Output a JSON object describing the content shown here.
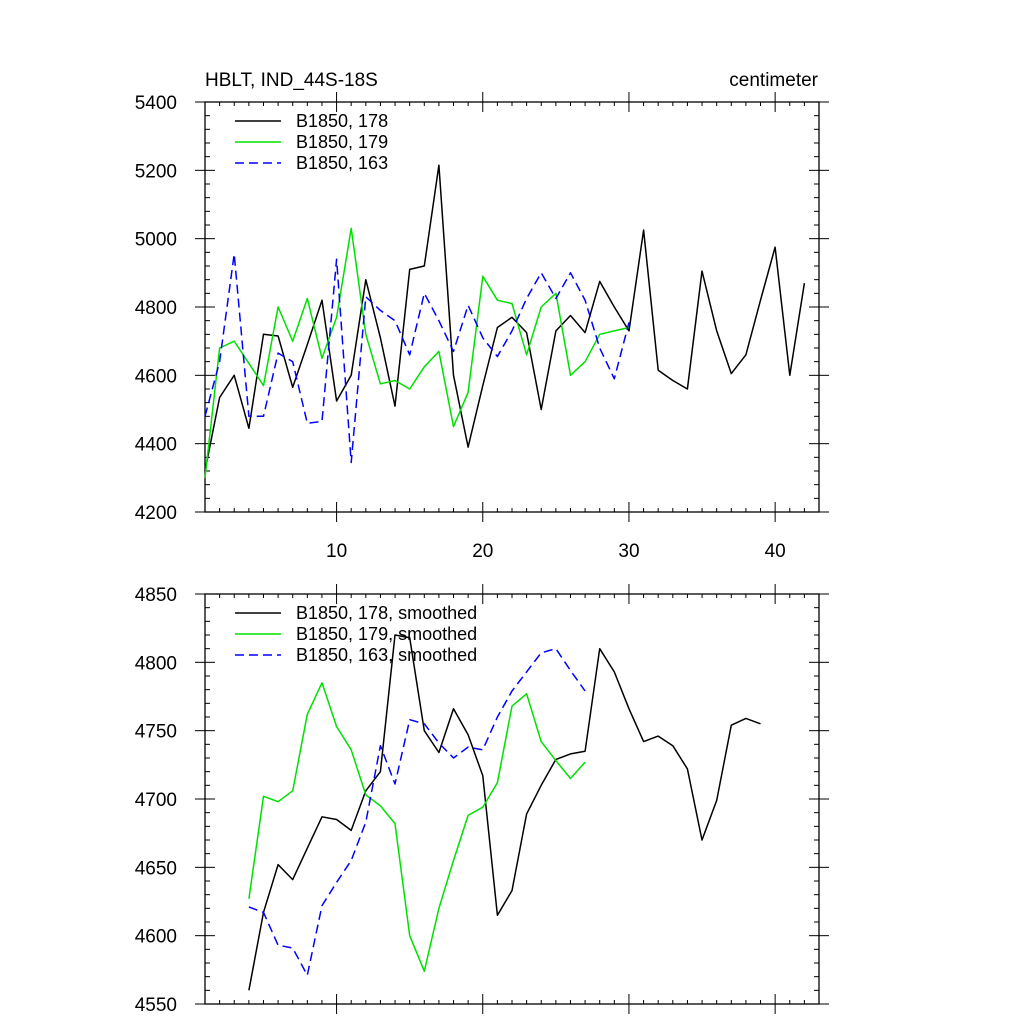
{
  "chart_data": [
    {
      "type": "line",
      "title_left": "HBLT, IND_44S-18S",
      "title_right": "centimeter",
      "xlabel": "",
      "ylabel": "",
      "xlim": [
        1,
        43
      ],
      "ylim": [
        4200,
        5400
      ],
      "xticks": [
        10,
        20,
        30,
        40
      ],
      "yticks": [
        4200,
        4400,
        4600,
        4800,
        5000,
        5200,
        5400
      ],
      "series": [
        {
          "name": "B1850, 178",
          "color": "#000000",
          "dash": "solid",
          "x": [
            1,
            2,
            3,
            4,
            5,
            6,
            7,
            8,
            9,
            10,
            11,
            12,
            13,
            14,
            15,
            16,
            17,
            18,
            19,
            20,
            21,
            22,
            23,
            24,
            25,
            26,
            27,
            28,
            29,
            30,
            31,
            32,
            33,
            34,
            35,
            36,
            37,
            38,
            39,
            40,
            41,
            42
          ],
          "values": [
            4320,
            4535,
            4600,
            4445,
            4720,
            4715,
            4565,
            4690,
            4820,
            4525,
            4600,
            4880,
            4710,
            4510,
            4910,
            4920,
            5215,
            4600,
            4390,
            4570,
            4740,
            4770,
            4725,
            4500,
            4730,
            4775,
            4725,
            4875,
            4800,
            4730,
            5025,
            4615,
            4585,
            4560,
            4905,
            4730,
            4605,
            4660,
            4820,
            4975,
            4600,
            4870
          ]
        },
        {
          "name": "B1850, 179",
          "color": "#00e000",
          "dash": "solid",
          "x": [
            1,
            2,
            3,
            4,
            5,
            6,
            7,
            8,
            9,
            10,
            11,
            12,
            13,
            14,
            15,
            16,
            17,
            18,
            19,
            20,
            21,
            22,
            23,
            24,
            25,
            26,
            27,
            28,
            29,
            30
          ],
          "values": [
            4300,
            4680,
            4700,
            4635,
            4570,
            4800,
            4700,
            4825,
            4650,
            4770,
            5030,
            4720,
            4575,
            4585,
            4560,
            4625,
            4670,
            4450,
            4550,
            4890,
            4820,
            4810,
            4660,
            4800,
            4840,
            4600,
            4640,
            4720,
            4730,
            4740
          ]
        },
        {
          "name": "B1850, 163",
          "color": "#0000ff",
          "dash": "dashed",
          "x": [
            1,
            2,
            3,
            4,
            5,
            6,
            7,
            8,
            9,
            10,
            11,
            12,
            13,
            14,
            15,
            16,
            17,
            18,
            19,
            20,
            21,
            22,
            23,
            24,
            25,
            26,
            27,
            28,
            29,
            30
          ],
          "values": [
            4480,
            4640,
            4955,
            4480,
            4480,
            4665,
            4640,
            4460,
            4465,
            4940,
            4345,
            4830,
            4790,
            4760,
            4660,
            4840,
            4760,
            4670,
            4805,
            4710,
            4655,
            4730,
            4825,
            4900,
            4825,
            4900,
            4820,
            4680,
            4590,
            4755
          ]
        }
      ]
    },
    {
      "type": "line",
      "xlabel": "",
      "ylabel": "",
      "xlim": [
        1,
        43
      ],
      "ylim": [
        4550,
        4850
      ],
      "xticks": [
        10,
        20,
        30,
        40
      ],
      "yticks": [
        4550,
        4600,
        4650,
        4700,
        4750,
        4800,
        4850
      ],
      "series": [
        {
          "name": "B1850, 178, smoothed",
          "color": "#000000",
          "dash": "solid",
          "x": [
            4,
            5,
            6,
            7,
            8,
            9,
            10,
            11,
            12,
            13,
            14,
            15,
            16,
            17,
            18,
            19,
            20,
            21,
            22,
            23,
            24,
            25,
            26,
            27,
            28,
            29,
            30,
            31,
            32,
            33,
            34,
            35,
            36,
            37,
            38,
            39
          ],
          "values": [
            4560,
            4617,
            4652,
            4641,
            4664,
            4687,
            4685,
            4677,
            4706,
            4720,
            4820,
            4818,
            4750,
            4734,
            4766,
            4747,
            4717,
            4615,
            4633,
            4689,
            4710,
            4729,
            4733,
            4735,
            4810,
            4793,
            4766,
            4742,
            4746,
            4739,
            4722,
            4670,
            4699,
            4754,
            4759,
            4755
          ]
        },
        {
          "name": "B1850, 179, smoothed",
          "color": "#00e000",
          "dash": "solid",
          "x": [
            4,
            5,
            6,
            7,
            8,
            9,
            10,
            11,
            12,
            13,
            14,
            15,
            16,
            17,
            18,
            19,
            20,
            21,
            22,
            23,
            24,
            25,
            26,
            27
          ],
          "values": [
            4627,
            4702,
            4698,
            4706,
            4762,
            4785,
            4753,
            4736,
            4703,
            4695,
            4682,
            4600,
            4574,
            4620,
            4655,
            4688,
            4694,
            4712,
            4768,
            4777,
            4742,
            4728,
            4715,
            4727
          ]
        },
        {
          "name": "B1850, 163, smoothed",
          "color": "#0000ff",
          "dash": "dashed",
          "x": [
            4,
            5,
            6,
            7,
            8,
            9,
            10,
            11,
            12,
            13,
            14,
            15,
            16,
            17,
            18,
            19,
            20,
            21,
            22,
            23,
            24,
            25,
            26,
            27
          ],
          "values": [
            4621,
            4617,
            4593,
            4591,
            4571,
            4622,
            4639,
            4655,
            4683,
            4739,
            4711,
            4758,
            4755,
            4741,
            4730,
            4738,
            4736,
            4760,
            4779,
            4793,
            4807,
            4810,
            4794,
            4779
          ]
        }
      ]
    }
  ]
}
